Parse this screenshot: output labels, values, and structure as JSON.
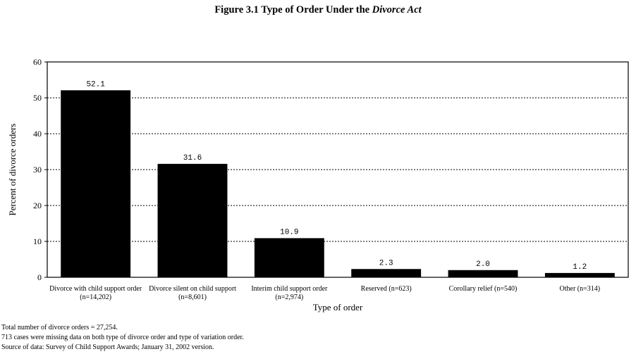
{
  "title": {
    "main": "Figure 3.1  Type of Order Under the ",
    "italic": "Divorce Act"
  },
  "chart_data": {
    "type": "bar",
    "categories": [
      {
        "line1": "Divorce with child support order",
        "line2": "(n=14,202)"
      },
      {
        "line1": "Divorce silent on child support",
        "line2": "(n=8,601)"
      },
      {
        "line1": "Interim child support order",
        "line2": "(n=2,974)"
      },
      {
        "line1": "Reserved (n=623)",
        "line2": ""
      },
      {
        "line1": "Corollary relief (n=540)",
        "line2": ""
      },
      {
        "line1": "Other (n=314)",
        "line2": ""
      }
    ],
    "values": [
      52.1,
      31.6,
      10.9,
      2.3,
      2.0,
      1.2
    ],
    "data_labels": [
      "52.1",
      "31.6",
      "10.9",
      "2.3",
      "2.0",
      "1.2"
    ],
    "xlabel": "Type of order",
    "ylabel": "Percent of divorce orders",
    "ylim": [
      0,
      60
    ],
    "yticks": [
      0,
      10,
      20,
      30,
      40,
      50,
      60
    ],
    "grid": "dotted horizontal",
    "bar_color": "#000000"
  },
  "notes": [
    "Total number of divorce orders = 27,254.",
    "713 cases were missing data on both type of divorce order and type of variation order.",
    "Source of data:  Survey of Child Support Awards; January 31, 2002 version."
  ]
}
